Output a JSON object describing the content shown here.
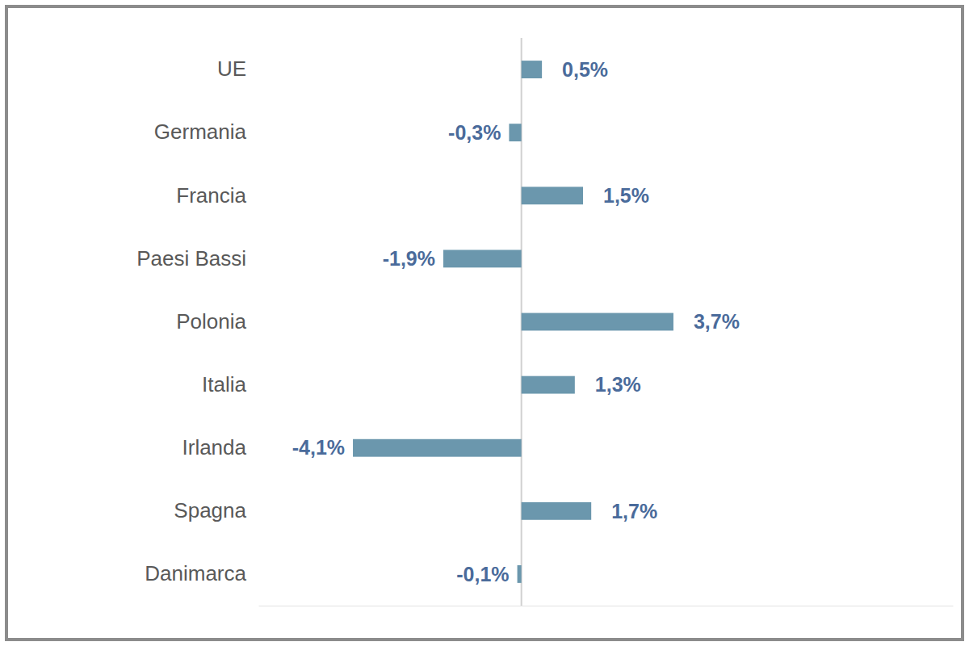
{
  "chart_data": {
    "type": "bar",
    "orientation": "horizontal",
    "categories": [
      "UE",
      "Germania",
      "Francia",
      "Paesi Bassi",
      "Polonia",
      "Italia",
      "Irlanda",
      "Spagna",
      "Danimarca"
    ],
    "values": [
      0.5,
      -0.3,
      1.5,
      -1.9,
      3.7,
      1.3,
      -4.1,
      1.7,
      -0.1
    ],
    "value_labels": [
      "0,5%",
      "-0,3%",
      "1,5%",
      "-1,9%",
      "3,7%",
      "1,3%",
      "-4,1%",
      "1,7%",
      "-0,1%"
    ],
    "color": "#6b97ad",
    "xlim": [
      -6.4,
      10.5
    ],
    "xticks": [],
    "data_labels": true,
    "tick_labels": "y",
    "grid": false
  }
}
